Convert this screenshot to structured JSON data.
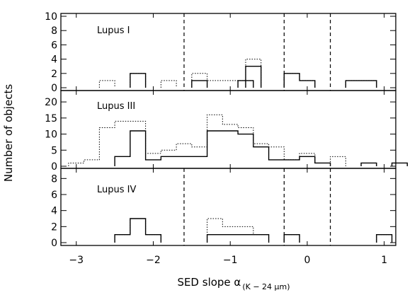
{
  "chart_data": {
    "type": "histogram",
    "xlabel_main": "SED slope α",
    "xlabel_sub": "(K − 24 μm)",
    "ylabel": "Number of objects",
    "xlim": [
      -3.2,
      1.15
    ],
    "x_ticks": [
      -3,
      -2,
      -1,
      0,
      1
    ],
    "bin_width": 0.2,
    "vertical_lines": [
      -1.6,
      -0.3,
      0.3
    ],
    "panels": [
      {
        "label": "Lupus I",
        "ylim": [
          0,
          10
        ],
        "y_ticks": [
          0,
          2,
          4,
          6,
          8,
          10
        ],
        "dashed_lines": true,
        "series": [
          {
            "style": "solid",
            "bins": [
              [
                -2.3,
                2
              ],
              [
                -1.5,
                1
              ],
              [
                -0.9,
                1
              ],
              [
                -0.8,
                3
              ],
              [
                -0.3,
                2
              ],
              [
                -0.1,
                1
              ],
              [
                0.5,
                1
              ],
              [
                0.7,
                1
              ]
            ]
          },
          {
            "style": "dotted",
            "bins": [
              [
                -2.7,
                1
              ],
              [
                -2.3,
                2
              ],
              [
                -1.9,
                1
              ],
              [
                -1.5,
                2
              ],
              [
                -1.3,
                1
              ],
              [
                -1.1,
                1
              ],
              [
                -0.9,
                1
              ],
              [
                -0.8,
                4
              ],
              [
                -0.3,
                2
              ],
              [
                -0.1,
                1
              ],
              [
                0.5,
                1
              ],
              [
                0.7,
                1
              ]
            ]
          }
        ]
      },
      {
        "label": "Lupus III",
        "ylim": [
          0,
          22
        ],
        "y_ticks": [
          0,
          5,
          10,
          15,
          20
        ],
        "dashed_lines": false,
        "series": [
          {
            "style": "solid",
            "bins": [
              [
                -2.5,
                3
              ],
              [
                -2.3,
                11
              ],
              [
                -2.1,
                2
              ],
              [
                -1.9,
                3
              ],
              [
                -1.7,
                3
              ],
              [
                -1.5,
                3
              ],
              [
                -1.3,
                11
              ],
              [
                -1.1,
                11
              ],
              [
                -0.9,
                10
              ],
              [
                -0.7,
                6
              ],
              [
                -0.5,
                2
              ],
              [
                -0.3,
                2
              ],
              [
                -0.1,
                3
              ],
              [
                0.1,
                1
              ],
              [
                0.7,
                1
              ],
              [
                1.1,
                1
              ]
            ]
          },
          {
            "style": "dotted",
            "bins": [
              [
                -3.1,
                1
              ],
              [
                -2.9,
                2
              ],
              [
                -2.7,
                12
              ],
              [
                -2.5,
                14
              ],
              [
                -2.3,
                14
              ],
              [
                -2.1,
                4
              ],
              [
                -1.9,
                5
              ],
              [
                -1.7,
                7
              ],
              [
                -1.5,
                6
              ],
              [
                -1.3,
                16
              ],
              [
                -1.1,
                13
              ],
              [
                -0.9,
                12
              ],
              [
                -0.7,
                7
              ],
              [
                -0.5,
                6
              ],
              [
                -0.3,
                2
              ],
              [
                -0.1,
                4
              ],
              [
                0.1,
                1
              ],
              [
                0.3,
                3
              ],
              [
                0.7,
                1
              ],
              [
                1.1,
                1
              ]
            ]
          }
        ]
      },
      {
        "label": "Lupus IV",
        "ylim": [
          0,
          9
        ],
        "y_ticks": [
          0,
          2,
          4,
          6,
          8
        ],
        "dashed_lines": true,
        "series": [
          {
            "style": "solid",
            "bins": [
              [
                -2.5,
                1
              ],
              [
                -2.3,
                3
              ],
              [
                -2.1,
                1
              ],
              [
                -1.3,
                1
              ],
              [
                -1.1,
                1
              ],
              [
                -0.9,
                1
              ],
              [
                -0.7,
                1
              ],
              [
                -0.3,
                1
              ],
              [
                0.9,
                1
              ]
            ]
          },
          {
            "style": "dotted",
            "bins": [
              [
                -2.5,
                1
              ],
              [
                -2.3,
                3
              ],
              [
                -2.1,
                1
              ],
              [
                -1.3,
                3
              ],
              [
                -1.1,
                2
              ],
              [
                -0.9,
                2
              ],
              [
                -0.7,
                1
              ],
              [
                -0.3,
                1
              ],
              [
                0.9,
                1
              ]
            ]
          }
        ]
      }
    ]
  }
}
